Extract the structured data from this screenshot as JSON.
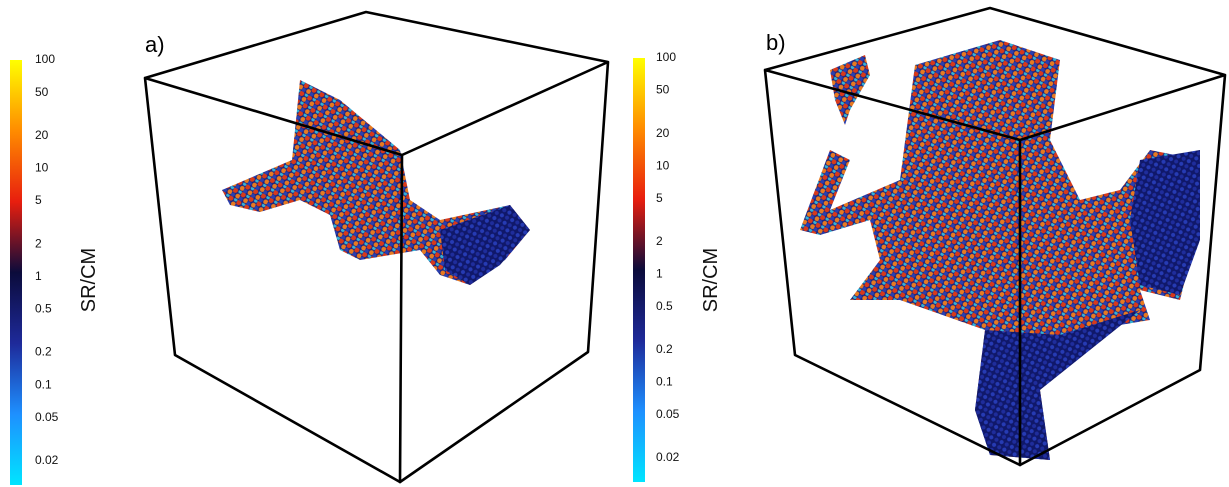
{
  "chart_data": [
    {
      "type": "colorbar",
      "panel_label": "a)",
      "axis_label": "SR/CM",
      "log": true,
      "ylim": [
        0.012,
        100
      ],
      "yticks": [
        100,
        50,
        20,
        10,
        5,
        2,
        1,
        0.5,
        0.2,
        0.1,
        0.05,
        0.02
      ],
      "colors": [
        "#00e5ff",
        "#1e90ff",
        "#1e2a9a",
        "#0b0b3b",
        "#e81e0e",
        "#ff8c00",
        "#ffff00"
      ]
    },
    {
      "type": "colorbar",
      "panel_label": "b)",
      "axis_label": "SR/CM",
      "log": true,
      "ylim": [
        0.012,
        100
      ],
      "yticks": [
        100,
        50,
        20,
        10,
        5,
        2,
        1,
        0.5,
        0.2,
        0.1,
        0.05,
        0.02
      ],
      "colors": [
        "#00e5ff",
        "#1e90ff",
        "#1e2a9a",
        "#0b0b3b",
        "#e81e0e",
        "#ff8c00",
        "#ffff00"
      ]
    }
  ]
}
